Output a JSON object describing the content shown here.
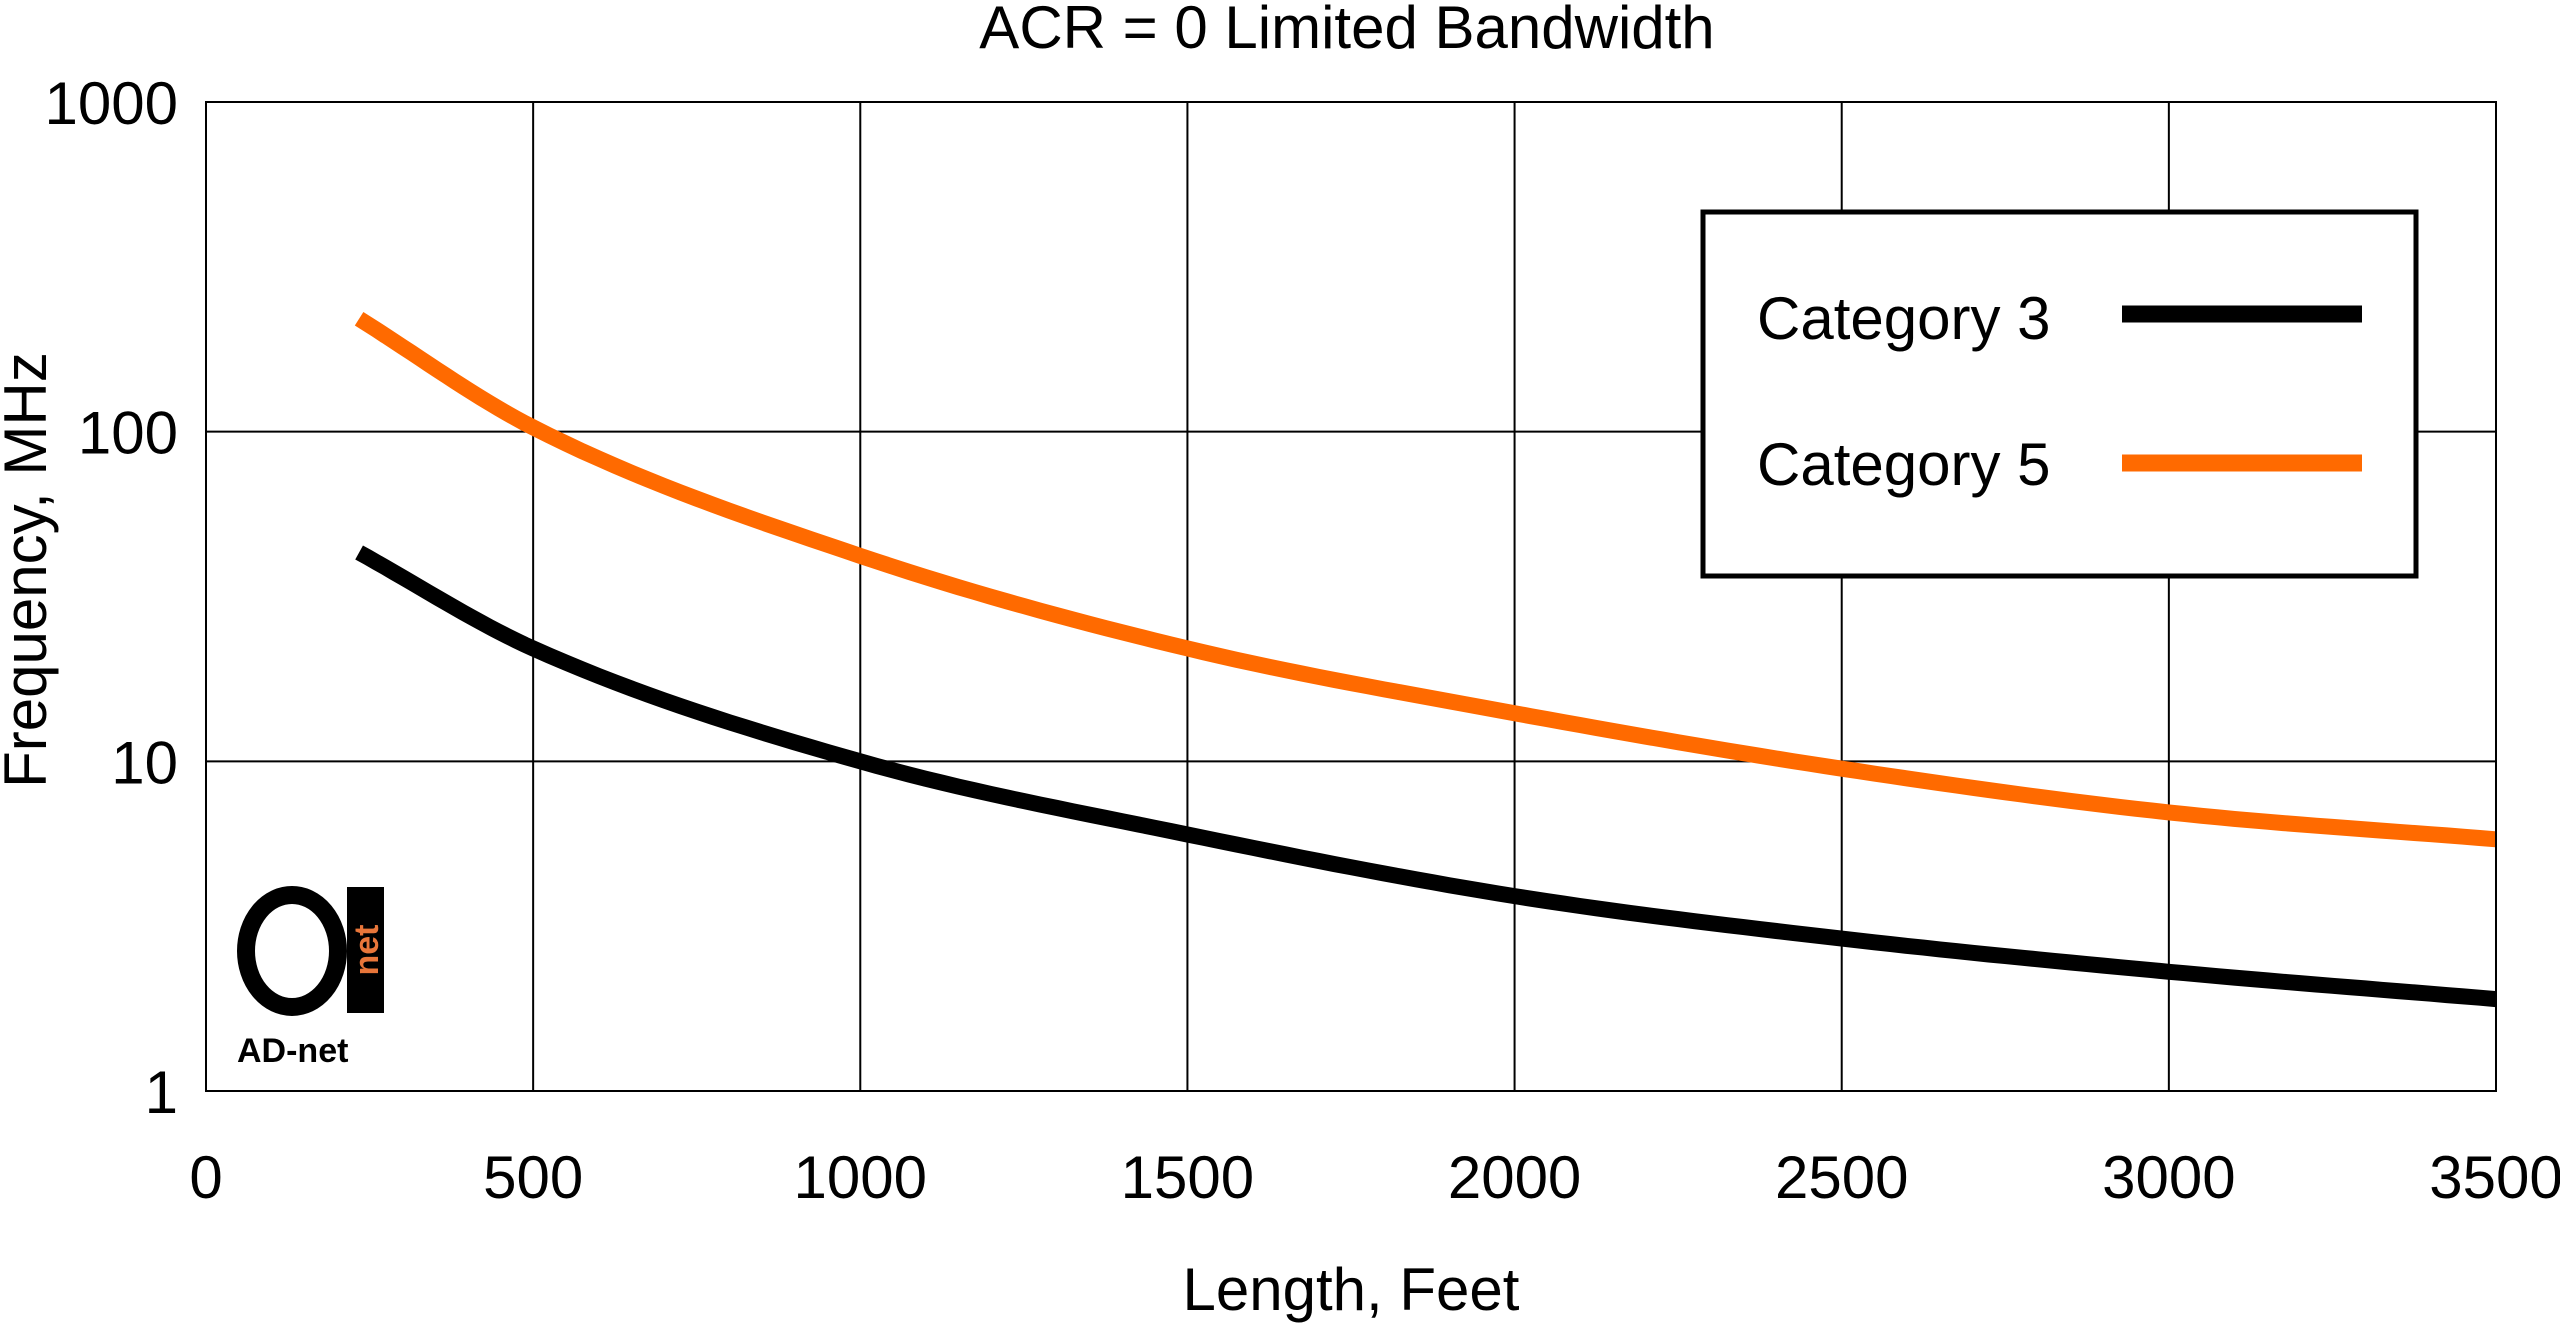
{
  "chart_data": {
    "type": "line",
    "title": "ACR = 0 Limited Bandwidth",
    "xlabel": "Length, Feet",
    "ylabel": "Frequency, MHz",
    "xlim": [
      0,
      3500
    ],
    "ylim": [
      1,
      1000
    ],
    "yscale": "log",
    "grid": true,
    "legend_position": "top-right",
    "x_ticks": [
      "0",
      "500",
      "1000",
      "1500",
      "2000",
      "2500",
      "3000",
      "3500"
    ],
    "y_ticks": [
      "1",
      "10",
      "100",
      "1000"
    ],
    "x": [
      234,
      500,
      1000,
      1500,
      2000,
      2500,
      3000,
      3500
    ],
    "series": [
      {
        "name": "Category 3",
        "color": "#000000",
        "values": [
          43,
          22,
          10,
          6,
          3.9,
          2.9,
          2.3,
          1.9
        ]
      },
      {
        "name": "Category 5",
        "color": "#ff6a00",
        "values": [
          220,
          103,
          42,
          22,
          14,
          9.5,
          7,
          5.8
        ]
      }
    ]
  },
  "logo": {
    "text": "AD-net",
    "mark_text": "net",
    "accent": "#e8763a"
  }
}
